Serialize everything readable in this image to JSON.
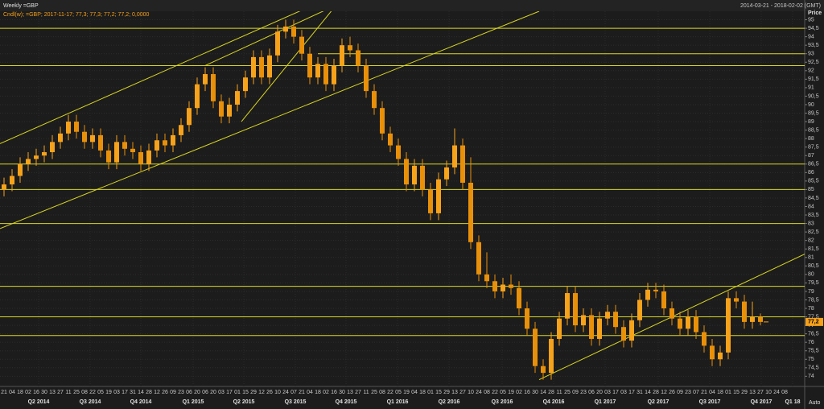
{
  "chart_data": {
    "type": "candlestick",
    "title": "Weekly =GBP",
    "subtitle": "Cndl(w); =GBP; 2017-11-17; 77,3; 77,3; 77,2; 77,2; 0,0000",
    "date_range": "2014-03-21 - 2018-02-02 (GMT)",
    "y_axis_label": "Price",
    "scale_mode": "Auto",
    "up_color": "#f7a21b",
    "down_color": "#e8900a",
    "line_color": "#d9d622",
    "grid": true,
    "xlim": [
      -0.5,
      99.5
    ],
    "ylim": [
      73.4,
      95.5
    ],
    "open": [
      85.0,
      85.3,
      85.8,
      86.5,
      86.8,
      87.0,
      87.2,
      87.8,
      88.3,
      89.0,
      88.4,
      87.8,
      88.2,
      87.3,
      86.6,
      87.8,
      87.4,
      87.2,
      86.5,
      87.3,
      87.9,
      87.6,
      88.2,
      88.8,
      89.8,
      91.2,
      91.8,
      90.2,
      89.3,
      90.0,
      90.8,
      91.6,
      92.8,
      91.6,
      92.9,
      94.3,
      94.6,
      94.0,
      93.0,
      91.6,
      92.4,
      91.2,
      92.3,
      93.5,
      93.2,
      92.3,
      90.8,
      89.8,
      88.3,
      87.6,
      86.8,
      85.3,
      86.4,
      85.0,
      83.6,
      85.6,
      86.3,
      87.6,
      85.4,
      81.9,
      80.0,
      79.6,
      79.0,
      79.4,
      79.2,
      78.0,
      76.8,
      74.6,
      74.2,
      76.2,
      77.4,
      78.9,
      77.0,
      77.6,
      76.2,
      77.4,
      77.8,
      76.9,
      76.1,
      77.3,
      78.5,
      79.1,
      79.0,
      78.0,
      77.4,
      76.8,
      77.5,
      76.6,
      75.8,
      75.0,
      75.4,
      78.6,
      78.4,
      77.2,
      77.5
    ],
    "high": [
      85.7,
      86.2,
      86.9,
      87.2,
      87.4,
      87.6,
      88.2,
      88.7,
      89.4,
      89.4,
      88.8,
      88.6,
      88.6,
      87.7,
      88.2,
      88.2,
      87.8,
      87.6,
      87.7,
      88.3,
      88.3,
      88.6,
      89.2,
      90.2,
      91.6,
      92.2,
      92.2,
      90.6,
      90.4,
      91.2,
      92.0,
      93.2,
      93.2,
      93.3,
      94.7,
      95.0,
      95.0,
      94.4,
      93.4,
      92.8,
      92.8,
      92.7,
      93.9,
      94.0,
      93.6,
      92.7,
      91.2,
      90.2,
      88.7,
      88.0,
      87.2,
      86.8,
      86.8,
      85.4,
      86.0,
      86.7,
      88.6,
      88.0,
      86.9,
      82.3,
      81.3,
      80.0,
      79.8,
      80.0,
      79.6,
      78.4,
      77.2,
      75.0,
      76.6,
      77.8,
      79.3,
      79.3,
      78.0,
      78.0,
      77.8,
      78.2,
      78.2,
      77.3,
      77.7,
      78.9,
      79.5,
      79.5,
      79.4,
      78.4,
      77.8,
      77.9,
      77.9,
      77.0,
      76.2,
      75.8,
      79.0,
      79.0,
      78.8,
      78.4,
      77.7
    ],
    "low": [
      84.6,
      84.9,
      85.4,
      86.1,
      86.4,
      86.6,
      86.8,
      87.4,
      87.9,
      88.0,
      87.4,
      87.4,
      86.9,
      86.2,
      86.2,
      87.0,
      86.8,
      86.1,
      86.1,
      86.9,
      87.2,
      87.2,
      87.8,
      88.4,
      89.4,
      90.8,
      89.8,
      88.9,
      88.9,
      89.6,
      90.4,
      91.2,
      91.2,
      91.2,
      92.5,
      93.9,
      93.6,
      92.6,
      91.2,
      91.2,
      90.8,
      90.8,
      91.9,
      92.8,
      91.9,
      90.4,
      89.4,
      87.9,
      87.2,
      86.4,
      84.9,
      84.9,
      84.6,
      83.2,
      83.2,
      85.2,
      85.9,
      85.0,
      81.5,
      79.6,
      79.2,
      78.6,
      78.6,
      78.8,
      77.6,
      76.4,
      74.2,
      73.8,
      73.8,
      75.8,
      77.0,
      76.6,
      76.6,
      75.8,
      75.8,
      77.0,
      76.5,
      75.7,
      75.7,
      76.9,
      78.1,
      78.6,
      77.6,
      77.0,
      76.4,
      76.4,
      76.2,
      75.4,
      74.6,
      74.6,
      75.0,
      78.0,
      76.8,
      76.8,
      77.0
    ],
    "close": [
      85.3,
      85.8,
      86.5,
      86.8,
      87.0,
      87.2,
      87.8,
      88.3,
      89.0,
      88.4,
      87.8,
      88.2,
      87.3,
      86.6,
      87.8,
      87.4,
      87.2,
      86.5,
      87.3,
      87.9,
      87.6,
      88.2,
      88.8,
      89.8,
      91.2,
      91.8,
      90.2,
      89.3,
      90.0,
      90.8,
      91.6,
      92.8,
      91.6,
      92.9,
      94.3,
      94.6,
      94.0,
      93.0,
      91.6,
      92.4,
      91.2,
      92.3,
      93.5,
      93.2,
      92.3,
      90.8,
      89.8,
      88.3,
      87.6,
      86.8,
      85.3,
      86.4,
      85.0,
      83.6,
      85.6,
      86.3,
      87.6,
      85.4,
      81.9,
      80.0,
      79.6,
      79.0,
      79.4,
      79.2,
      78.0,
      76.8,
      74.6,
      74.2,
      76.2,
      77.4,
      78.9,
      77.0,
      77.6,
      76.2,
      77.4,
      77.8,
      76.9,
      76.1,
      77.3,
      78.5,
      79.1,
      79.0,
      78.0,
      77.4,
      76.8,
      77.5,
      76.6,
      75.8,
      75.0,
      75.4,
      78.6,
      78.4,
      77.2,
      77.5,
      77.2
    ],
    "last_price": {
      "value": 77.2,
      "label": "77,2"
    },
    "hlines": [
      {
        "value": 94.5
      },
      {
        "value": 93,
        "from": 39
      },
      {
        "value": 92.3
      },
      {
        "value": 86.5
      },
      {
        "value": 85
      },
      {
        "value": 83
      },
      {
        "value": 79.3
      },
      {
        "value": 77.5
      },
      {
        "value": 76.4
      }
    ],
    "trendlines": [
      {
        "x": [
          -0.5,
          41
        ],
        "y": [
          87.7,
          96.4
        ]
      },
      {
        "x": [
          -0.5,
          66.5
        ],
        "y": [
          82.7,
          95.5
        ]
      },
      {
        "x": [
          25,
          41
        ],
        "y": [
          92.3,
          95.8
        ]
      },
      {
        "x": [
          29.5,
          41
        ],
        "y": [
          89.0,
          95.7
        ]
      },
      {
        "x": [
          66.5,
          99.5
        ],
        "y": [
          73.8,
          81.2
        ]
      }
    ],
    "yticks": [
      74,
      {
        "value": 74.5,
        "label": "74,5"
      },
      75,
      {
        "value": 75.5,
        "label": "75,5"
      },
      76,
      {
        "value": 76.5,
        "label": "76,5"
      },
      77,
      {
        "value": 77.5,
        "label": "77,5"
      },
      78,
      {
        "value": 78.5,
        "label": "78,5"
      },
      79,
      {
        "value": 79.5,
        "label": "79,5"
      },
      80,
      {
        "value": 80.5,
        "label": "80,5"
      },
      81,
      {
        "value": 81.5,
        "label": "81,5"
      },
      82,
      {
        "value": 82.5,
        "label": "82,5"
      },
      83,
      {
        "value": 83.5,
        "label": "83,5"
      },
      84,
      {
        "value": 84.5,
        "label": "84,5"
      },
      85,
      {
        "value": 85.5,
        "label": "85,5"
      },
      86,
      {
        "value": 86.5,
        "label": "86,5"
      },
      87,
      {
        "value": 87.5,
        "label": "87,5"
      },
      88,
      {
        "value": 88.5,
        "label": "88,5"
      },
      89,
      {
        "value": 89.5,
        "label": "89,5"
      },
      90,
      {
        "value": 90.5,
        "label": "90,5"
      },
      91,
      {
        "value": 91.5,
        "label": "91,5"
      },
      92,
      {
        "value": 92.5,
        "label": "92,5"
      },
      93,
      {
        "value": 93.5,
        "label": "93,5"
      },
      94,
      {
        "value": 94.5,
        "label": "94,5"
      },
      95
    ],
    "x_labels": [
      "21",
      "04",
      "18",
      "02",
      "16",
      "30",
      "13",
      "27",
      "11",
      "25",
      "08",
      "22",
      "05",
      "19",
      "03",
      "17",
      "31",
      "14",
      "28",
      "12",
      "26",
      "09",
      "23",
      "06",
      "20",
      "06",
      "20",
      "03",
      "17",
      "01",
      "15",
      "29",
      "12",
      "26",
      "10",
      "24",
      "07",
      "21",
      "04",
      "18",
      "02",
      "16",
      "30",
      "13",
      "27",
      "11",
      "25",
      "08",
      "22",
      "05",
      "19",
      "04",
      "18",
      "01",
      "15",
      "29",
      "13",
      "27",
      "10",
      "24",
      "08",
      "22",
      "05",
      "19",
      "02",
      "16",
      "30",
      "14",
      "28",
      "11",
      "25",
      "09",
      "23",
      "06",
      "20",
      "03",
      "17",
      "03",
      "17",
      "31",
      "14",
      "28",
      "12",
      "26",
      "09",
      "23",
      "07",
      "21",
      "04",
      "18",
      "01",
      "15",
      "29",
      "13",
      "27",
      "10",
      "24",
      "08"
    ],
    "quarter_ticks": [
      {
        "value": 4.3,
        "label": "Q2 2014"
      },
      {
        "value": 10.7,
        "label": "Q3 2014"
      },
      {
        "value": 17,
        "label": "Q4 2014"
      },
      {
        "value": 23.5,
        "label": "Q1 2015"
      },
      {
        "value": 29.8,
        "label": "Q2 2015"
      },
      {
        "value": 36.2,
        "label": "Q3 2015"
      },
      {
        "value": 42.5,
        "label": "Q4 2015"
      },
      {
        "value": 48.9,
        "label": "Q1 2016"
      },
      {
        "value": 55.3,
        "label": "Q2 2016"
      },
      {
        "value": 61.9,
        "label": "Q3 2016"
      },
      {
        "value": 68.3,
        "label": "Q4 2016"
      },
      {
        "value": 74.7,
        "label": "Q1 2017"
      },
      {
        "value": 81.3,
        "label": "Q2 2017"
      },
      {
        "value": 87.7,
        "label": "Q3 2017"
      },
      {
        "value": 94.1,
        "label": "Q4 2017"
      },
      {
        "value": 98,
        "label": "Q1 18"
      }
    ]
  }
}
